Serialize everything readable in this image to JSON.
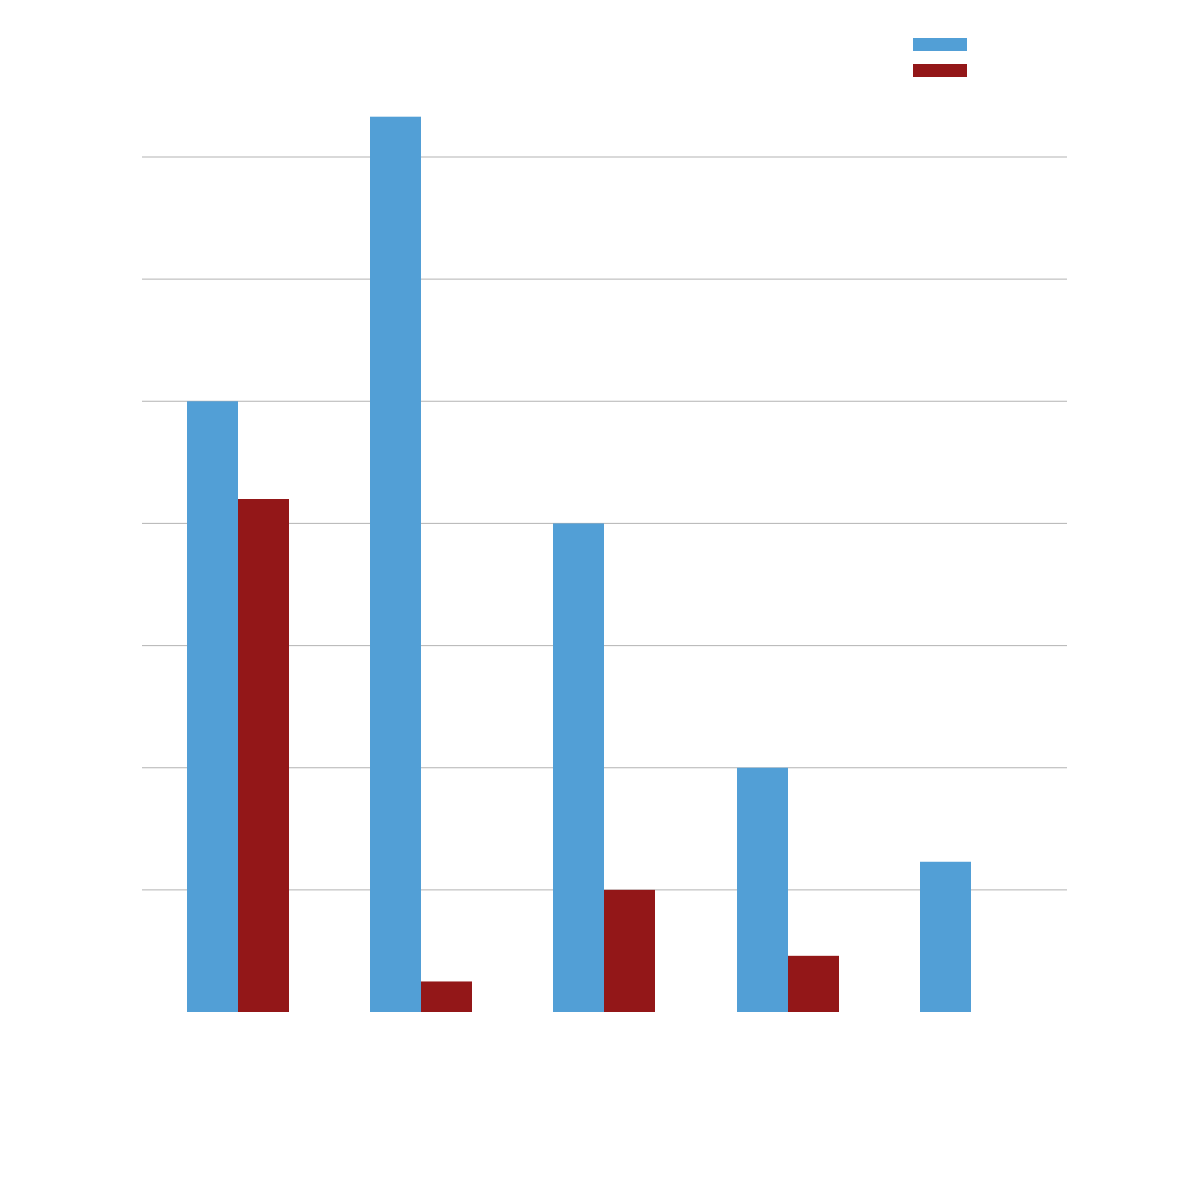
{
  "chart_data": {
    "type": "bar",
    "categories": [
      "",
      "",
      "",
      "",
      ""
    ],
    "series": [
      {
        "values": [
          50,
          73.3,
          40,
          20,
          12.3
        ],
        "color": "#529fd6"
      },
      {
        "values": [
          42,
          2.5,
          10,
          4.6,
          0
        ],
        "color": "#931718"
      }
    ],
    "ylim": [
      0,
      70
    ],
    "yticks": [
      10,
      20,
      30,
      40,
      50,
      60,
      70
    ],
    "grid": true,
    "legend": "top-right",
    "title": "",
    "xlabel": "",
    "ylabel": ""
  }
}
